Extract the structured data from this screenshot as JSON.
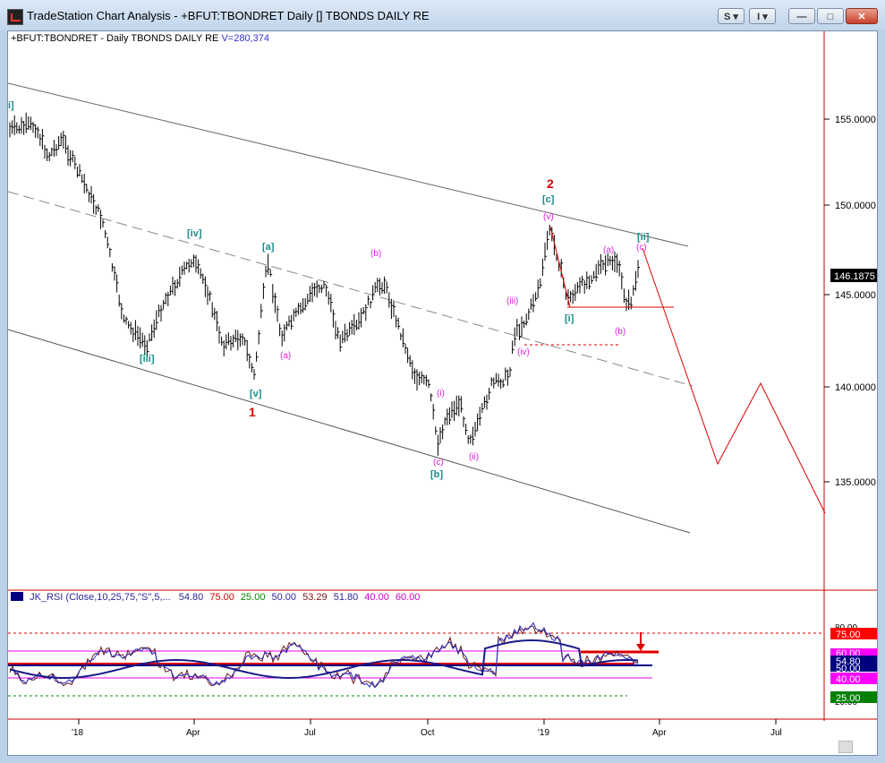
{
  "window": {
    "title": "TradeStation Chart Analysis - +BFUT:TBONDRET Daily [] TBONDS DAILY RE",
    "buttons": {
      "s_label": "S",
      "i_label": "I",
      "min_label": "—",
      "max_label": "□",
      "close_label": "✕"
    }
  },
  "chart_header": {
    "symbol": "+BFUT:TBONDRET - Daily  TBONDS DAILY RE",
    "volume": "V=280,374",
    "symbol_color": "#000000",
    "volume_color": "#3333cc"
  },
  "price_axis": {
    "ticks": [
      "155.0000",
      "150.0000",
      "145.0000",
      "140.0000",
      "135.0000"
    ],
    "last_price": "146.1875"
  },
  "time_axis": {
    "labels": [
      "'18",
      "Apr",
      "Jul",
      "Oct",
      "'19",
      "Apr",
      "Jul"
    ]
  },
  "wave_labels": {
    "teal": [
      "i]",
      "[iv]",
      "[a]",
      "[iii]",
      "[v]",
      "[b]",
      "[c]",
      "[i]",
      "[ii]"
    ],
    "red": [
      "1",
      "2"
    ],
    "magenta": [
      "(b)",
      "(a)",
      "(i)",
      "(c)",
      "(ii)",
      "(iii)",
      "(iv)",
      "(v)",
      "(a)",
      "(b)",
      "(c)"
    ]
  },
  "rsi_header": {
    "name": "JK_RSI (Close,10,25,75,\"S\",5,...",
    "values": [
      {
        "text": "54.80",
        "color": "#2a2a9a"
      },
      {
        "text": "75.00",
        "color": "#e00000"
      },
      {
        "text": "25.00",
        "color": "#008800"
      },
      {
        "text": "50.00",
        "color": "#2a2a9a"
      },
      {
        "text": "53.29",
        "color": "#7a1a1a"
      },
      {
        "text": "51.80",
        "color": "#2a2a9a"
      },
      {
        "text": "40.00",
        "color": "#cc00cc"
      },
      {
        "text": "60.00",
        "color": "#cc00cc"
      }
    ]
  },
  "rsi_axis": {
    "tick_80": "80.00",
    "tick_20": "20.00",
    "labels": [
      {
        "text": "75.00",
        "bg": "#ff0000",
        "fg": "#ffffff"
      },
      {
        "text": "60.00",
        "bg": "#ff00ff",
        "fg": "#ffffff"
      },
      {
        "text": "54.80",
        "bg": "#000080",
        "fg": "#ffffff"
      },
      {
        "text": "50.00",
        "bg": "#000080",
        "fg": "#ffffff"
      },
      {
        "text": "40.00",
        "bg": "#ff00ff",
        "fg": "#ffffff"
      },
      {
        "text": "25.00",
        "bg": "#008000",
        "fg": "#ffffff"
      }
    ]
  },
  "colors": {
    "teal": "#1a8c8c",
    "magenta": "#dd22dd",
    "red": "#dd0000",
    "bars": "#000000"
  }
}
